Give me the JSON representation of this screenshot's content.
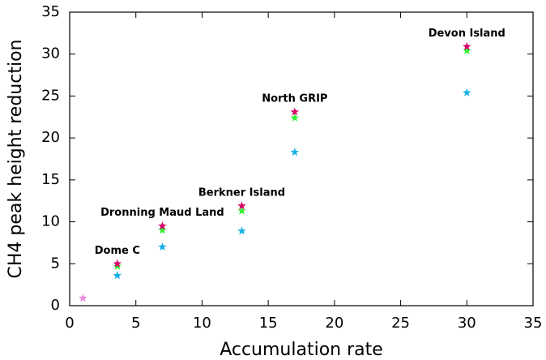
{
  "chart_data": {
    "type": "scatter",
    "xlabel": "Accumulation rate",
    "ylabel": "CH4 peak height reduction",
    "xlim": [
      0,
      35
    ],
    "ylim": [
      0,
      35
    ],
    "xticks": [
      0,
      5,
      10,
      15,
      20,
      25,
      30,
      35
    ],
    "yticks": [
      0,
      5,
      10,
      15,
      20,
      25,
      30,
      35
    ],
    "annotations": [
      "Dome C",
      "Dronning Maud Land",
      "Berkner Island",
      "North GRIP",
      "Devon Island"
    ],
    "series": [
      {
        "color": "#d6006b",
        "x": [
          3.6,
          7,
          13,
          17,
          30
        ],
        "values": [
          5.0,
          9.5,
          11.9,
          23.1,
          30.9
        ]
      },
      {
        "color": "#33ee33",
        "x": [
          3.6,
          7,
          13,
          17,
          30
        ],
        "values": [
          4.7,
          9.0,
          11.3,
          22.4,
          30.4
        ]
      },
      {
        "color": "#1ab0e8",
        "x": [
          3.6,
          7,
          13,
          17,
          30
        ],
        "values": [
          3.6,
          7.0,
          8.9,
          18.3,
          25.4
        ]
      },
      {
        "color": "#ee88dd",
        "x": [
          1.0
        ],
        "values": [
          0.9
        ]
      }
    ]
  }
}
